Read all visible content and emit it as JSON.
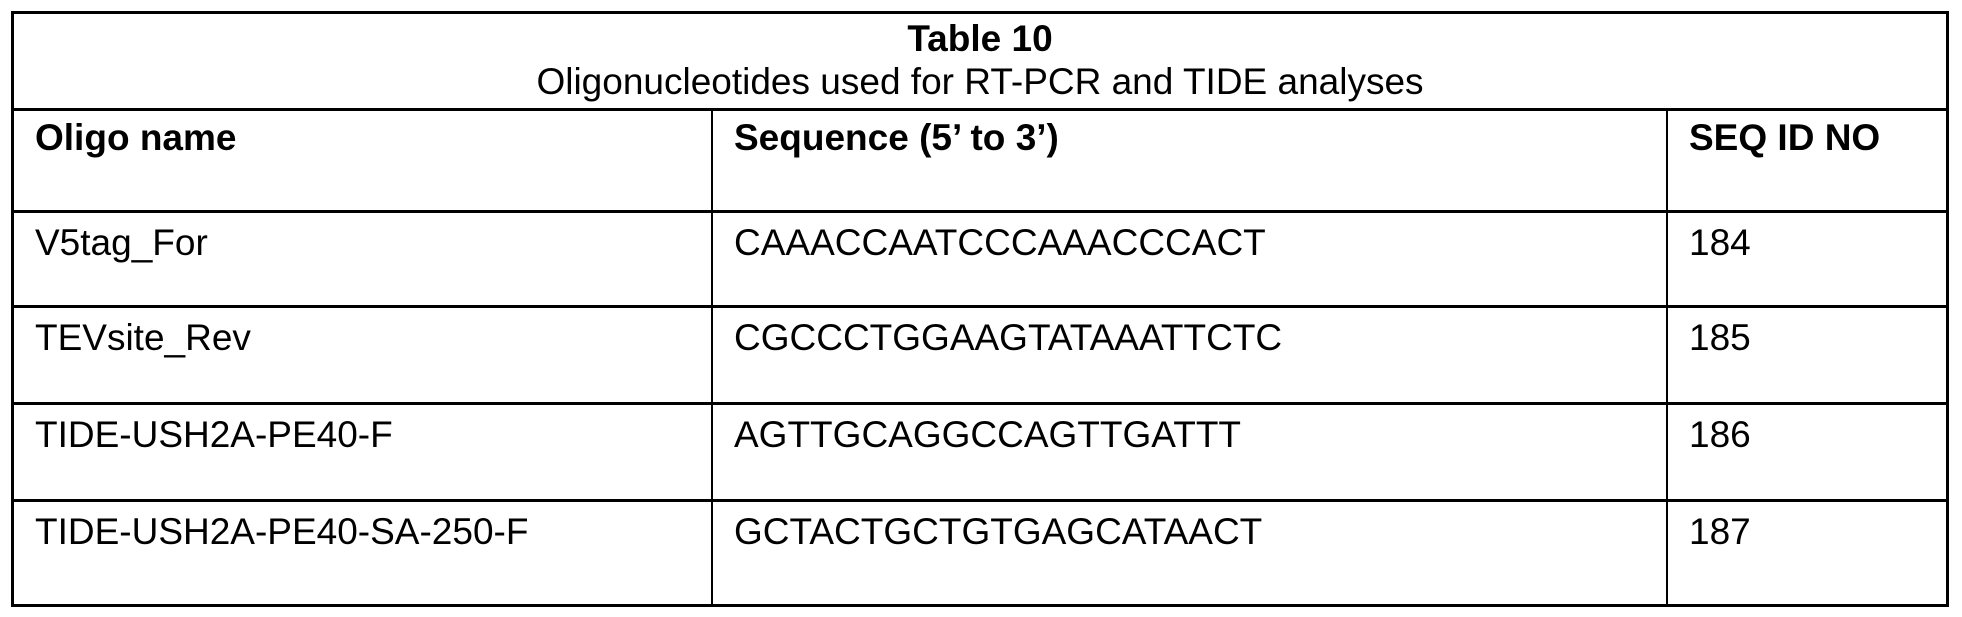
{
  "table": {
    "title": "Table 10",
    "subtitle": "Oligonucleotides used for RT-PCR and TIDE analyses",
    "columns": [
      "Oligo name",
      "Sequence (5’ to 3’)",
      "SEQ ID NO"
    ],
    "rows": [
      [
        "V5tag_For",
        "CAAACCAATCCCAAACCCACT",
        "184"
      ],
      [
        "TEVsite_Rev",
        "CGCCCTGGAAGTATAAATTCTC",
        "185"
      ],
      [
        "TIDE-USH2A-PE40-F",
        "AGTTGCAGGCCAGTTGATTT",
        "186"
      ],
      [
        "TIDE-USH2A-PE40-SA-250-F",
        "GCTACTGCTGTGAGCATAACT",
        "187"
      ]
    ]
  }
}
